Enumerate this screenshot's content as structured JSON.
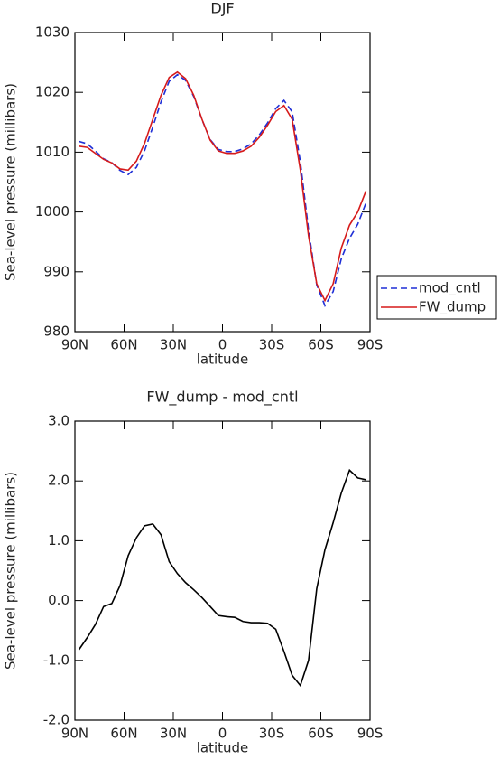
{
  "chart_data": [
    {
      "type": "line",
      "title": "DJF",
      "xlabel": "latitude",
      "ylabel": "Sea-level pressure (millibars)",
      "x": [
        87.5,
        82.5,
        77.5,
        72.5,
        67.5,
        62.5,
        57.5,
        52.5,
        47.5,
        42.5,
        37.5,
        32.5,
        27.5,
        22.5,
        17.5,
        12.5,
        7.5,
        2.5,
        -2.5,
        -7.5,
        -12.5,
        -17.5,
        -22.5,
        -27.5,
        -32.5,
        -37.5,
        -42.5,
        -47.5,
        -52.5,
        -57.5,
        -62.5,
        -67.5,
        -72.5,
        -77.5,
        -82.5,
        -87.5
      ],
      "series": [
        {
          "name": "mod_cntl",
          "color": "#1f2fd6",
          "line_style": "dashed",
          "values": [
            1011.8,
            1011.4,
            1010.2,
            1008.9,
            1008.25,
            1006.95,
            1006.25,
            1007.45,
            1010.25,
            1014.2,
            1018.4,
            1021.85,
            1022.95,
            1022.0,
            1019.3,
            1015.45,
            1012.1,
            1010.45,
            1010.1,
            1010.1,
            1010.55,
            1011.4,
            1012.9,
            1014.9,
            1017.3,
            1018.65,
            1016.75,
            1008.4,
            997,
            987.8,
            984.35,
            986.7,
            992.2,
            995.6,
            997.95,
            1001.5
          ]
        },
        {
          "name": "FW_dump",
          "color": "#d61a1a",
          "line_style": "solid",
          "values": [
            1011.0,
            1010.8,
            1009.8,
            1008.8,
            1008.2,
            1007.2,
            1007.0,
            1008.5,
            1011.5,
            1015.5,
            1019.5,
            1022.5,
            1023.4,
            1022.3,
            1019.5,
            1015.5,
            1012.0,
            1010.2,
            1009.8,
            1009.8,
            1010.2,
            1011.0,
            1012.5,
            1014.5,
            1016.8,
            1017.8,
            1015.5,
            1007,
            996,
            988,
            985.2,
            988,
            994,
            997.8,
            1000,
            1003.5
          ]
        }
      ],
      "xlim": [
        90,
        -90
      ],
      "xticks": [
        {
          "value": 90,
          "label": "90N"
        },
        {
          "value": 60,
          "label": "60N"
        },
        {
          "value": 30,
          "label": "30N"
        },
        0,
        {
          "value": -30,
          "label": "30S"
        },
        {
          "value": -60,
          "label": "60S"
        },
        {
          "value": -90,
          "label": "90S"
        }
      ],
      "ylim": [
        980,
        1030
      ],
      "yticks": [
        980,
        990,
        1000,
        1010,
        1020,
        1030
      ],
      "legend": "right"
    },
    {
      "type": "line",
      "title": "FW_dump - mod_cntl",
      "xlabel": "latitude",
      "ylabel": "Sea-level pressure (millibars)",
      "x": [
        87.5,
        82.5,
        77.5,
        72.5,
        67.5,
        62.5,
        57.5,
        52.5,
        47.5,
        42.5,
        37.5,
        32.5,
        27.5,
        22.5,
        17.5,
        12.5,
        7.5,
        2.5,
        -2.5,
        -7.5,
        -12.5,
        -17.5,
        -22.5,
        -27.5,
        -32.5,
        -37.5,
        -42.5,
        -47.5,
        -52.5,
        -57.5,
        -62.5,
        -67.5,
        -72.5,
        -77.5,
        -82.5,
        -87.5
      ],
      "color": "#000000",
      "values": [
        -0.82,
        -0.62,
        -0.4,
        -0.1,
        -0.05,
        0.25,
        0.75,
        1.05,
        1.25,
        1.28,
        1.1,
        0.65,
        0.45,
        0.3,
        0.18,
        0.05,
        -0.1,
        -0.25,
        -0.27,
        -0.28,
        -0.35,
        -0.37,
        -0.37,
        -0.38,
        -0.48,
        -0.85,
        -1.25,
        -1.42,
        -1.0,
        0.2,
        0.85,
        1.3,
        1.8,
        2.18,
        2.05,
        2.02
      ],
      "xlim": [
        90,
        -90
      ],
      "xticks": [
        {
          "value": 90,
          "label": "90N"
        },
        {
          "value": 60,
          "label": "60N"
        },
        {
          "value": 30,
          "label": "30N"
        },
        0,
        {
          "value": -30,
          "label": "30S"
        },
        {
          "value": -60,
          "label": "60S"
        },
        {
          "value": -90,
          "label": "90S"
        }
      ],
      "ylim": [
        -2,
        3
      ],
      "yticks": [
        {
          "value": -2,
          "label": "-2.0"
        },
        {
          "value": -1,
          "label": "-1.0"
        },
        {
          "value": 0,
          "label": "0.0"
        },
        {
          "value": 1,
          "label": "1.0"
        },
        {
          "value": 2,
          "label": "2.0"
        },
        {
          "value": 3,
          "label": "3.0"
        }
      ]
    }
  ]
}
